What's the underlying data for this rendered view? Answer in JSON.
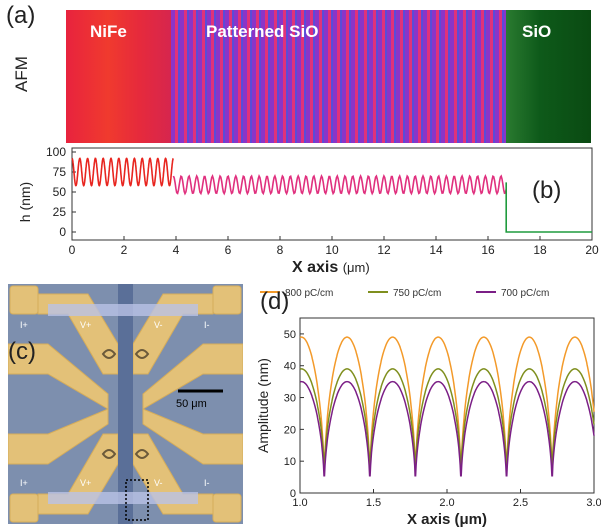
{
  "panels": {
    "a": {
      "letter": "(a)",
      "side_label": "AFM",
      "regions": [
        "NiFe",
        "Patterned SiO",
        "SiO"
      ]
    },
    "b": {
      "letter": "(b)"
    },
    "c": {
      "letter": "(c)",
      "scale_bar": "50 μm",
      "contact_labels": [
        "I+",
        "V+",
        "V-",
        "I-",
        "I+",
        "V+",
        "V-",
        "I-"
      ]
    },
    "d": {
      "letter": "(d)"
    }
  },
  "colors": {
    "trace_nife": "#e8251f",
    "trace_pattern": "#e0307e",
    "trace_sio": "#1f9b3e",
    "s800": "#f39a2a",
    "s750": "#7f8f1e",
    "s700": "#7b1f86"
  },
  "chart_data": [
    {
      "type": "line",
      "panel": "b",
      "xlabel": "X axis",
      "xunit": "(μm)",
      "ylabel": "h (nm)",
      "xlim": [
        0,
        20
      ],
      "ylim": [
        -10,
        105
      ],
      "xticks": [
        0,
        2,
        4,
        6,
        8,
        10,
        12,
        14,
        16,
        18,
        20
      ],
      "yticks": [
        0,
        25,
        50,
        75,
        100
      ],
      "segments": [
        {
          "x_start": 0,
          "x_end": 3.9,
          "level_high": 92,
          "level_low": 58,
          "color": "nife"
        },
        {
          "x_start": 3.9,
          "x_end": 16.7,
          "level_high": 70,
          "level_low": 48,
          "color": "pattern"
        },
        {
          "x_start": 16.7,
          "x_end": 20,
          "level_high": 0,
          "level_low": 0,
          "color": "sio"
        }
      ]
    },
    {
      "type": "line",
      "panel": "d",
      "xlabel": "X axis (μm)",
      "ylabel": "Amplitude (nm)",
      "xlim": [
        1.0,
        3.0
      ],
      "ylim": [
        0,
        55
      ],
      "xticks": [
        1.0,
        1.5,
        2.0,
        2.5,
        3.0
      ],
      "xticklabels": [
        "1.0",
        "1.5",
        "2.0",
        "2.5",
        "3.0"
      ],
      "yticks": [
        0,
        10,
        20,
        30,
        40,
        50
      ],
      "period": 0.31,
      "phase": 1.165,
      "series": [
        {
          "name": "800 pC/cm",
          "color": "s800",
          "peak": 49,
          "min": 2
        },
        {
          "name": "750 pC/cm",
          "color": "s750",
          "peak": 39,
          "min": 4
        },
        {
          "name": "700 pC/cm",
          "color": "s700",
          "peak": 35,
          "min": 1
        }
      ]
    }
  ]
}
